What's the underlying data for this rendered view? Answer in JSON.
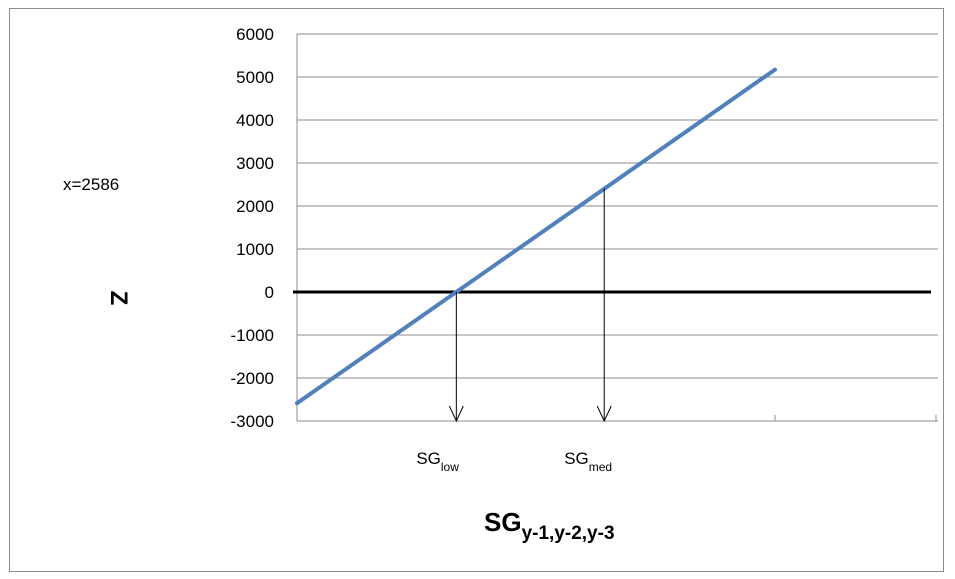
{
  "chart_data": {
    "type": "line",
    "ylabel": "Z",
    "xlabel": {
      "main": "SG",
      "sub": "y-1,y-2,y-3"
    },
    "ylim": [
      -3000,
      6000
    ],
    "yticks": [
      6000,
      5000,
      4000,
      3000,
      2000,
      1000,
      0,
      -1000,
      -2000,
      -3000
    ],
    "ytick_labels": [
      "6000",
      "5000",
      "4000",
      "3000",
      "2000",
      "1000",
      "0",
      "-1000",
      "-2000",
      "-3000"
    ],
    "grid": true,
    "annotation": "x=2586",
    "series": [
      {
        "color": "#4f81bd",
        "values": [
          -2586,
          0,
          2586,
          5172
        ]
      }
    ],
    "markers": [
      {
        "label_main": "SG",
        "label_sub": "low",
        "y": 0
      },
      {
        "label_main": "SG",
        "label_sub": "med",
        "y": 2400
      }
    ]
  }
}
